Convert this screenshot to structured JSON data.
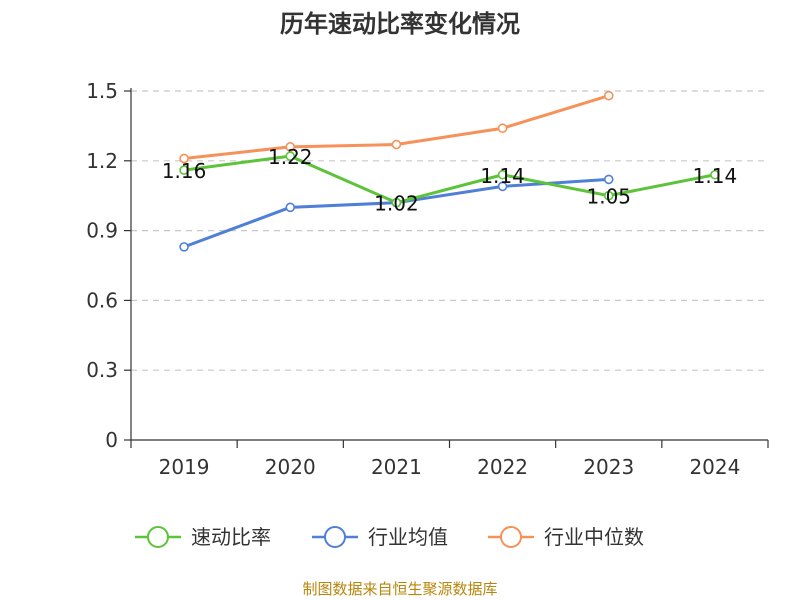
{
  "chart_data": {
    "type": "line",
    "title": "历年速动比率变化情况",
    "categories": [
      "2019",
      "2020",
      "2021",
      "2022",
      "2023",
      "2024"
    ],
    "ylim": [
      0,
      1.5
    ],
    "yticks": [
      "0",
      "0.3",
      "0.6",
      "0.9",
      "1.2",
      "1.5"
    ],
    "grid": true,
    "legend_position": "bottom",
    "series": [
      {
        "name": "速动比率",
        "color": "#5cc33a",
        "values": [
          1.16,
          1.22,
          1.02,
          1.14,
          1.05,
          1.14
        ],
        "labels": [
          "1.16",
          "1.22",
          "1.02",
          "1.14",
          "1.05",
          "1.14"
        ]
      },
      {
        "name": "行业均值",
        "color": "#4f7fd6",
        "values": [
          0.83,
          1.0,
          1.02,
          1.09,
          1.12,
          null
        ]
      },
      {
        "name": "行业中位数",
        "color": "#f7915a",
        "values": [
          1.21,
          1.26,
          1.27,
          1.34,
          1.48,
          null
        ]
      }
    ],
    "source": "制图数据来自恒生聚源数据库"
  }
}
